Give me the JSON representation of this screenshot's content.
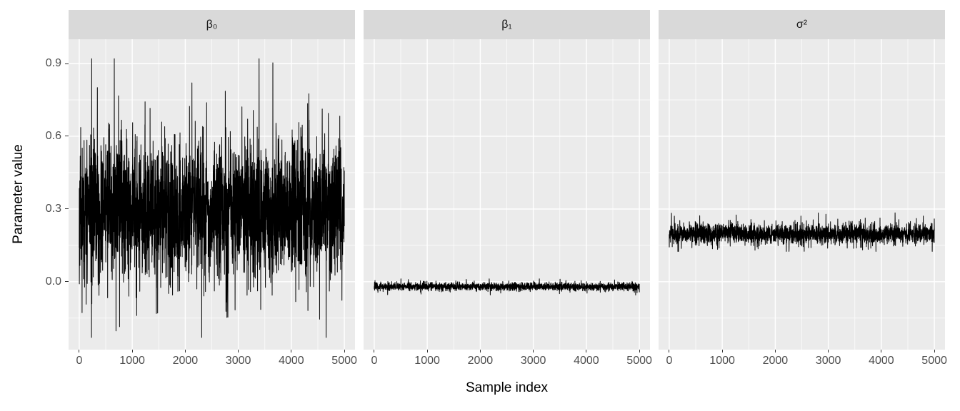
{
  "chart_data": {
    "type": "line",
    "subtype": "mcmc-trace-facets",
    "title": "",
    "x": {
      "label": "Sample index",
      "min": 0,
      "max": 5000,
      "ticks": [
        0,
        1000,
        2000,
        3000,
        4000,
        5000
      ],
      "minor_ticks": [
        500,
        1500,
        2500,
        3500,
        4500
      ],
      "domain": [
        -200,
        5200
      ]
    },
    "y": {
      "label": "Parameter value",
      "ticks": [
        0.0,
        0.3,
        0.6,
        0.9
      ],
      "tick_labels": [
        "0.0",
        "0.3",
        "0.6",
        "0.9"
      ],
      "minor_ticks": [
        -0.15,
        0.15,
        0.45,
        0.75
      ],
      "domain": [
        -0.28,
        1.0
      ]
    },
    "n_samples": 5000,
    "facets": [
      {
        "label": "β₀",
        "series_stats": {
          "mean": 0.3,
          "sd": 0.14,
          "min": -0.23,
          "max": 0.92
        },
        "seed": 11
      },
      {
        "label": "β₁",
        "series_stats": {
          "mean": -0.02,
          "sd": 0.008,
          "min": -0.055,
          "max": 0.012
        },
        "seed": 22
      },
      {
        "label": "σ²",
        "series_stats": {
          "mean": 0.197,
          "sd": 0.02,
          "min": 0.125,
          "max": 0.3
        },
        "seed": 33
      }
    ],
    "grid": "on",
    "legend": "none",
    "style": {
      "background": "#ffffff",
      "panel_bg": "#ebebeb",
      "strip_bg": "#d9d9d9",
      "grid_color": "#ffffff",
      "line_color": "#000000",
      "tick_color": "#333333",
      "tick_label_color": "#4d4d4d",
      "axis_title_color": "#000000"
    }
  }
}
